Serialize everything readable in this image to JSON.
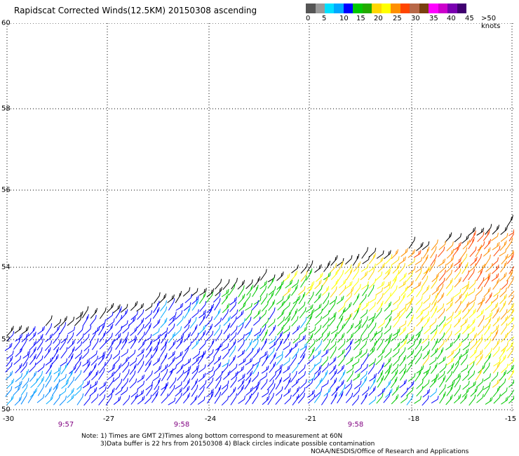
{
  "title": "Rapidscat Corrected Winds(12.5KM) 20150308 ascending",
  "colorbar": {
    "colors": [
      "#555555",
      "#8c8c8c",
      "#00d0ff",
      "#00a0ff",
      "#0000ff",
      "#00c000",
      "#00c000",
      "#ffd000",
      "#ffff00",
      "#ff8000",
      "#ff5000",
      "#c87050",
      "#8b4513",
      "#ff00ff",
      "#c000c0",
      "#6a0dad",
      "#3d0070"
    ],
    "labels": [
      "0",
      "5",
      "10",
      "15",
      "20",
      "25",
      "30",
      "35",
      "40",
      "45",
      ">50 knots"
    ]
  },
  "map": {
    "lat_labels": [
      "60",
      "58",
      "56",
      "54",
      "52",
      "50"
    ],
    "lon_labels": [
      "-30",
      "-27",
      "-24",
      "-21",
      "-18",
      "-15"
    ],
    "time_labels": [
      "9:57",
      "9:58",
      "9:58"
    ]
  },
  "notes": {
    "line1": "Note: 1) Times are GMT 2)Times along bottom correspond to measurement at 60N",
    "line2": "3)Data buffer is 22 hrs from 20150308 4) Black circles indicate possible contamination",
    "credit": "NOAA/NESDIS/Office of Research and Applications"
  }
}
